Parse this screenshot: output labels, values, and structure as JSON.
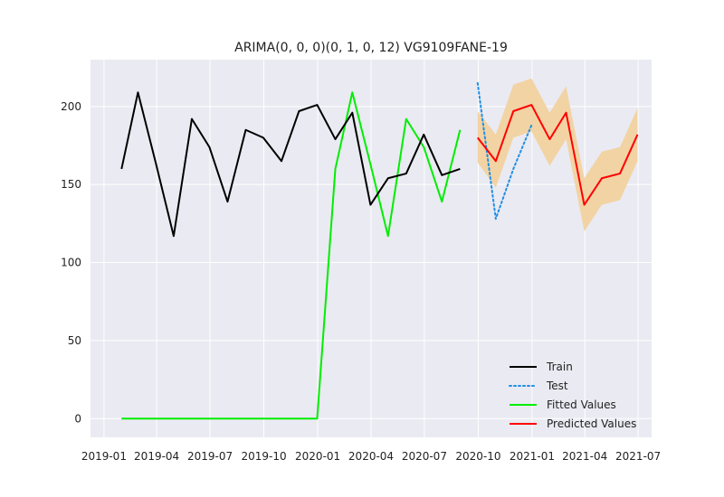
{
  "chart_data": {
    "type": "line",
    "title": "ARIMA(0, 0, 0)(0, 1, 0, 12) VG9109FANE-19",
    "xlabel": "",
    "ylabel": "",
    "grid": true,
    "legend_position": "bottom-right",
    "x_ticks": [
      "2019-01",
      "2019-04",
      "2019-07",
      "2019-10",
      "2020-01",
      "2020-04",
      "2020-07",
      "2020-10",
      "2021-01",
      "2021-04",
      "2021-07"
    ],
    "y_ticks": [
      0,
      50,
      100,
      150,
      200
    ],
    "ylim": [
      -12,
      230
    ],
    "xlim": [
      "2018-12-09",
      "2021-07-24"
    ],
    "series": [
      {
        "name": "Train",
        "color": "#000000",
        "style": "solid",
        "x": [
          "2019-01-31",
          "2019-02-28",
          "2019-03-31",
          "2019-04-30",
          "2019-05-31",
          "2019-06-30",
          "2019-07-31",
          "2019-08-31",
          "2019-09-30",
          "2019-10-31",
          "2019-11-30",
          "2019-12-31",
          "2020-01-31",
          "2020-02-29",
          "2020-03-31",
          "2020-04-30",
          "2020-05-31",
          "2020-06-30",
          "2020-07-31",
          "2020-08-31"
        ],
        "values": [
          160,
          209,
          163,
          117,
          192,
          174,
          139,
          185,
          180,
          165,
          197,
          201,
          179,
          196,
          137,
          154,
          157,
          182,
          156,
          160
        ]
      },
      {
        "name": "Test",
        "color": "#1f8fe6",
        "style": "dotted",
        "x": [
          "2020-09-30",
          "2020-10-31",
          "2020-11-30",
          "2020-12-31"
        ],
        "values": [
          215,
          128,
          160,
          188
        ]
      },
      {
        "name": "Fitted Values",
        "color": "#00ee00",
        "style": "solid",
        "x": [
          "2019-01-31",
          "2019-02-28",
          "2019-03-31",
          "2019-04-30",
          "2019-05-31",
          "2019-06-30",
          "2019-07-31",
          "2019-08-31",
          "2019-09-30",
          "2019-10-31",
          "2019-11-30",
          "2019-12-31",
          "2020-01-31",
          "2020-02-29",
          "2020-03-31",
          "2020-04-30",
          "2020-05-31",
          "2020-06-30",
          "2020-07-31",
          "2020-08-31"
        ],
        "values": [
          0,
          0,
          0,
          0,
          0,
          0,
          0,
          0,
          0,
          0,
          0,
          0,
          160,
          209,
          163,
          117,
          192,
          174,
          139,
          185
        ]
      },
      {
        "name": "Predicted Values",
        "color": "#ff0000",
        "style": "solid",
        "x": [
          "2020-09-30",
          "2020-10-31",
          "2020-11-30",
          "2020-12-31",
          "2021-01-31",
          "2021-02-28",
          "2021-03-31",
          "2021-04-30",
          "2021-05-31",
          "2021-06-30"
        ],
        "values": [
          180,
          165,
          197,
          201,
          179,
          196,
          137,
          154,
          157,
          182
        ]
      }
    ],
    "interval": {
      "color": "#f2d3a4",
      "x": [
        "2020-09-30",
        "2020-10-31",
        "2020-11-30",
        "2020-12-31",
        "2021-01-31",
        "2021-02-28",
        "2021-03-31",
        "2021-04-30",
        "2021-05-31",
        "2021-06-30"
      ],
      "lower": [
        164,
        148,
        180,
        184,
        162,
        179,
        120,
        137,
        140,
        165
      ],
      "upper": [
        197,
        182,
        214,
        218,
        196,
        213,
        154,
        171,
        174,
        199
      ]
    }
  }
}
